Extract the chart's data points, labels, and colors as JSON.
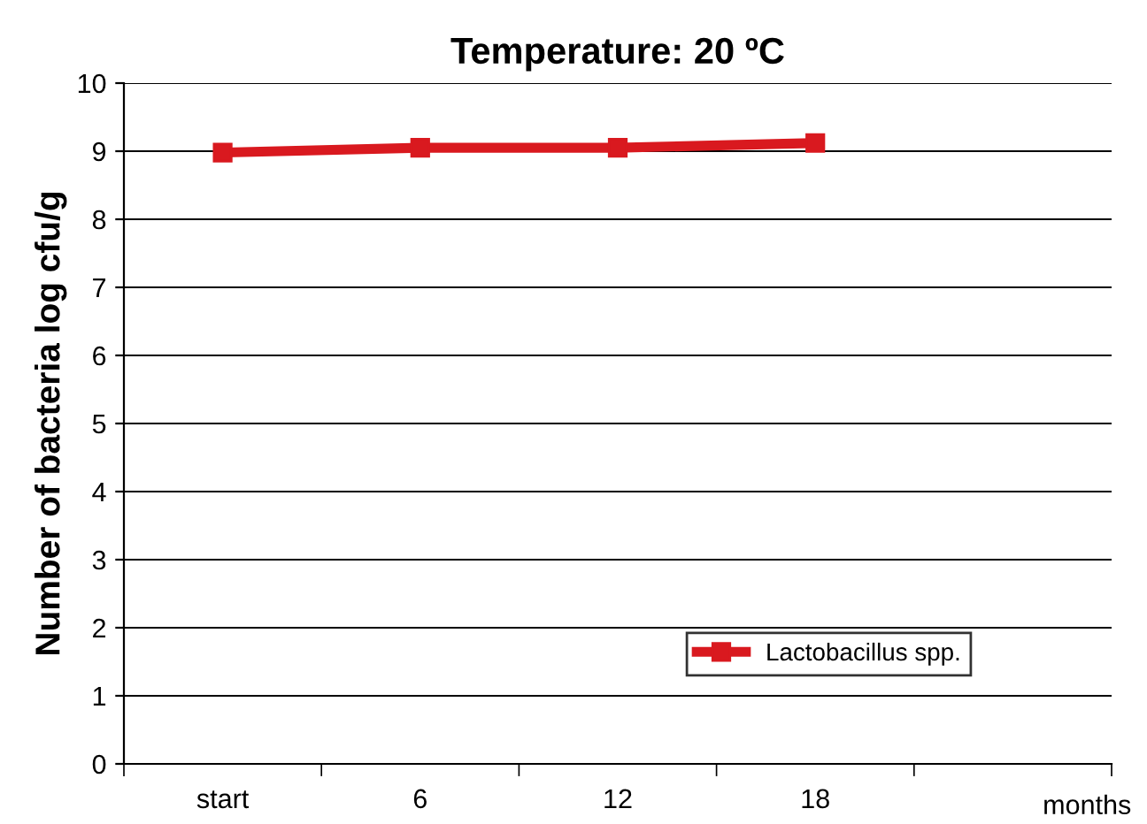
{
  "chart_data": {
    "type": "line",
    "title": "Temperature: 20 ºC",
    "xlabel": "months",
    "ylabel": "Number of bacteria log cfu/g",
    "categories": [
      "start",
      "6",
      "12",
      "18",
      null
    ],
    "series": [
      {
        "name": "Lactobacillus spp.",
        "color": "#d9191f",
        "values": [
          8.98,
          9.05,
          9.05,
          9.12,
          null
        ]
      }
    ],
    "ylim": [
      0,
      10
    ],
    "yticks": [
      0,
      1,
      2,
      3,
      4,
      5,
      6,
      7,
      8,
      9,
      10
    ],
    "grid": "y",
    "legend": "bottom right",
    "marker": "square",
    "line_style": "solid"
  }
}
